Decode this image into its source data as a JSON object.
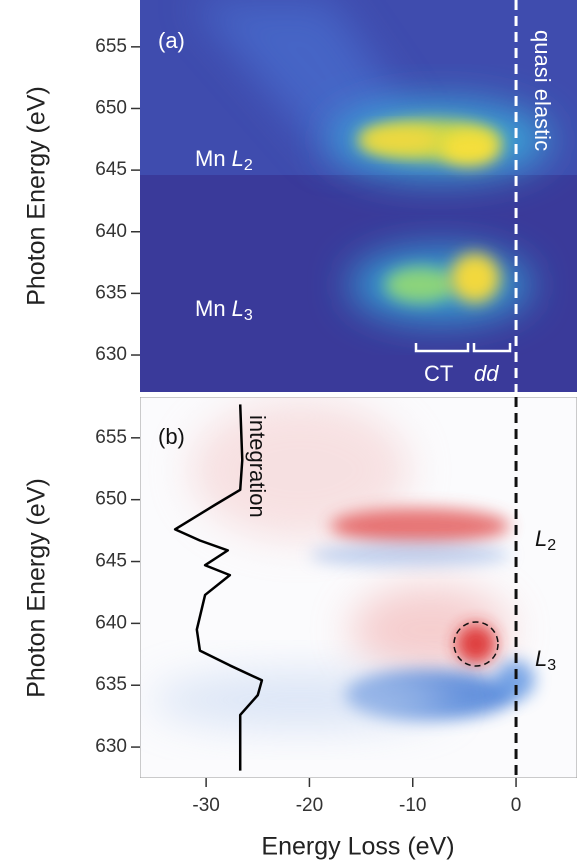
{
  "chart_data": [
    {
      "type": "heatmap",
      "panel_label": "(a)",
      "ylabel": "Photon Energy (eV)",
      "xlim": [
        -36.4,
        5.9
      ],
      "ylim": [
        627.0,
        658.8
      ],
      "yticks": [
        630,
        635,
        640,
        645,
        650,
        655
      ],
      "reference_x": 0,
      "reference_label": "quasi elastic",
      "reference_color": "#ffffff",
      "edge_labels": [
        {
          "element": "Mn",
          "symbol": "L",
          "subscript": "2"
        },
        {
          "element": "Mn",
          "symbol": "L",
          "subscript": "3"
        }
      ],
      "bracket_labels": [
        "CT",
        "dd"
      ]
    },
    {
      "type": "heatmap",
      "panel_label": "(b)",
      "ylabel": "Photon Energy (eV)",
      "xlabel": "Energy Loss (eV)",
      "xlim": [
        -36.4,
        5.9
      ],
      "ylim": [
        627.5,
        658.3
      ],
      "yticks": [
        630,
        635,
        640,
        645,
        650,
        655
      ],
      "xticks": [
        -30,
        -20,
        -10,
        0
      ],
      "reference_x": 0,
      "reference_color": "#111111",
      "edge_labels": [
        {
          "symbol": "L",
          "subscript": "2"
        },
        {
          "symbol": "L",
          "subscript": "3"
        }
      ],
      "series": [
        {
          "name": "integration",
          "color": "#000000",
          "x": [
            -26.7,
            -26.5,
            -26.7,
            -29.1,
            -33.0,
            -30.6,
            -27.9,
            -30.1,
            -27.7,
            -30.1,
            -30.9,
            -30.6,
            -27.7,
            -24.6,
            -25.0,
            -26.7,
            -26.7
          ],
          "values": [
            657.7,
            653.2,
            650.8,
            649.6,
            647.6,
            646.7,
            645.9,
            644.7,
            643.9,
            642.3,
            639.5,
            637.8,
            636.6,
            635.4,
            634.2,
            632.6,
            628.1
          ]
        }
      ]
    }
  ]
}
